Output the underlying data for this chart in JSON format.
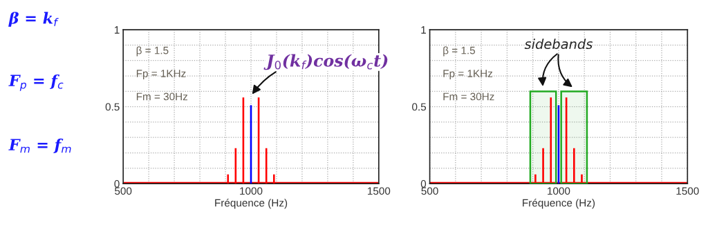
{
  "chart_data": [
    {
      "type": "other",
      "annotations": [
        "β = k$_{f}$",
        "F$_{p}$ = f$_{c}$",
        "F$_{m}$ = f$_{m}$"
      ]
    },
    {
      "type": "bar",
      "xlabel": "Fréquence (Hz)",
      "xlim": [
        500,
        1500
      ],
      "ylim": [
        0,
        1
      ],
      "xticks": [
        500,
        {
          "value": 600,
          "label": null
        },
        {
          "value": 700,
          "label": null
        },
        {
          "value": 800,
          "label": null
        },
        {
          "value": 900,
          "label": null
        },
        1000,
        {
          "value": 1100,
          "label": null
        },
        {
          "value": 1200,
          "label": null
        },
        {
          "value": 1300,
          "label": null
        },
        {
          "value": 1400,
          "label": null
        },
        1500
      ],
      "yticks": [
        0,
        {
          "value": 0.1,
          "label": null
        },
        {
          "value": 0.2,
          "label": null
        },
        {
          "value": 0.3,
          "label": null
        },
        {
          "value": 0.4,
          "label": null
        },
        0.5,
        {
          "value": 0.6,
          "label": null
        },
        {
          "value": 0.7,
          "label": null
        },
        {
          "value": 0.8,
          "label": null
        },
        {
          "value": 0.9,
          "label": null
        },
        1
      ],
      "grid": true,
      "series": [
        {
          "type": "line",
          "color": "#ff0000",
          "x": [
            500,
            1500
          ],
          "values": [
            0,
            0
          ]
        },
        {
          "type": "bar",
          "color": "#ff0000",
          "x": [
            910,
            940,
            970,
            1030,
            1060,
            1090
          ],
          "values": [
            0.06,
            0.23,
            0.56,
            0.56,
            0.23,
            0.06
          ]
        },
        {
          "type": "bar",
          "color": "#0000ff",
          "x": [
            1000
          ],
          "values": [
            0.51
          ]
        }
      ],
      "annotations": [
        "β = 1.5",
        "Fp = 1KHz",
        "Fm = 30Hz",
        {
          "text": "J$_{0}$(k$_{f}$)cos(ω$_{c}$t)",
          "x": 1000,
          "y": 0.51
        }
      ]
    },
    {
      "type": "bar",
      "xlabel": "Fréquence (Hz)",
      "xlim": [
        500,
        1500
      ],
      "ylim": [
        0,
        1
      ],
      "xticks": [
        500,
        {
          "value": 600,
          "label": null
        },
        {
          "value": 700,
          "label": null
        },
        {
          "value": 800,
          "label": null
        },
        {
          "value": 900,
          "label": null
        },
        1000,
        {
          "value": 1100,
          "label": null
        },
        {
          "value": 1200,
          "label": null
        },
        {
          "value": 1300,
          "label": null
        },
        {
          "value": 1400,
          "label": null
        },
        1500
      ],
      "yticks": [
        0,
        {
          "value": 0.1,
          "label": null
        },
        {
          "value": 0.2,
          "label": null
        },
        {
          "value": 0.3,
          "label": null
        },
        {
          "value": 0.4,
          "label": null
        },
        0.5,
        {
          "value": 0.6,
          "label": null
        },
        {
          "value": 0.7,
          "label": null
        },
        {
          "value": 0.8,
          "label": null
        },
        {
          "value": 0.9,
          "label": null
        },
        1
      ],
      "grid": true,
      "series": [
        {
          "type": "line",
          "color": "#ff0000",
          "x": [
            500,
            1500
          ],
          "values": [
            0,
            0
          ]
        },
        {
          "type": "bar",
          "color": "#ff0000",
          "x": [
            910,
            940,
            970,
            1030,
            1060,
            1090
          ],
          "values": [
            0.06,
            0.23,
            0.56,
            0.56,
            0.23,
            0.06
          ]
        },
        {
          "type": "bar",
          "color": "#0000ff",
          "x": [
            1000
          ],
          "values": [
            0.51
          ]
        }
      ],
      "bands": [
        {
          "axis": "x",
          "from": 890,
          "to": 990,
          "color": "#22aa22"
        },
        {
          "axis": "x",
          "from": 1010,
          "to": 1110,
          "color": "#22aa22"
        }
      ],
      "annotations": [
        "β = 1.5",
        "Fp = 1KHz",
        "Fm = 30Hz",
        "sidebands"
      ]
    }
  ]
}
